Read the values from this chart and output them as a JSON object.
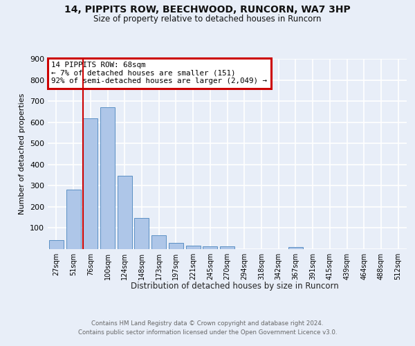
{
  "title1": "14, PIPPITS ROW, BEECHWOOD, RUNCORN, WA7 3HP",
  "title2": "Size of property relative to detached houses in Runcorn",
  "xlabel": "Distribution of detached houses by size in Runcorn",
  "ylabel": "Number of detached properties",
  "footnote1": "Contains HM Land Registry data © Crown copyright and database right 2024.",
  "footnote2": "Contains public sector information licensed under the Open Government Licence v3.0.",
  "annotation_line1": "14 PIPPITS ROW: 68sqm",
  "annotation_line2": "← 7% of detached houses are smaller (151)",
  "annotation_line3": "92% of semi-detached houses are larger (2,049) →",
  "bar_labels": [
    "27sqm",
    "51sqm",
    "76sqm",
    "100sqm",
    "124sqm",
    "148sqm",
    "173sqm",
    "197sqm",
    "221sqm",
    "245sqm",
    "270sqm",
    "294sqm",
    "318sqm",
    "342sqm",
    "367sqm",
    "391sqm",
    "415sqm",
    "439sqm",
    "464sqm",
    "488sqm",
    "512sqm"
  ],
  "bar_values": [
    42,
    280,
    620,
    670,
    348,
    148,
    65,
    30,
    18,
    13,
    12,
    0,
    0,
    0,
    10,
    0,
    0,
    0,
    0,
    0,
    0
  ],
  "bar_color": "#aec6e8",
  "bar_edge_color": "#5a8fc4",
  "red_line_index": 1.575,
  "ylim": [
    0,
    900
  ],
  "yticks": [
    0,
    100,
    200,
    300,
    400,
    500,
    600,
    700,
    800,
    900
  ],
  "background_color": "#e8eef8",
  "plot_bg_color": "#e8eef8",
  "grid_color": "#ffffff",
  "annotation_box_color": "#ffffff",
  "annotation_border_color": "#cc0000"
}
